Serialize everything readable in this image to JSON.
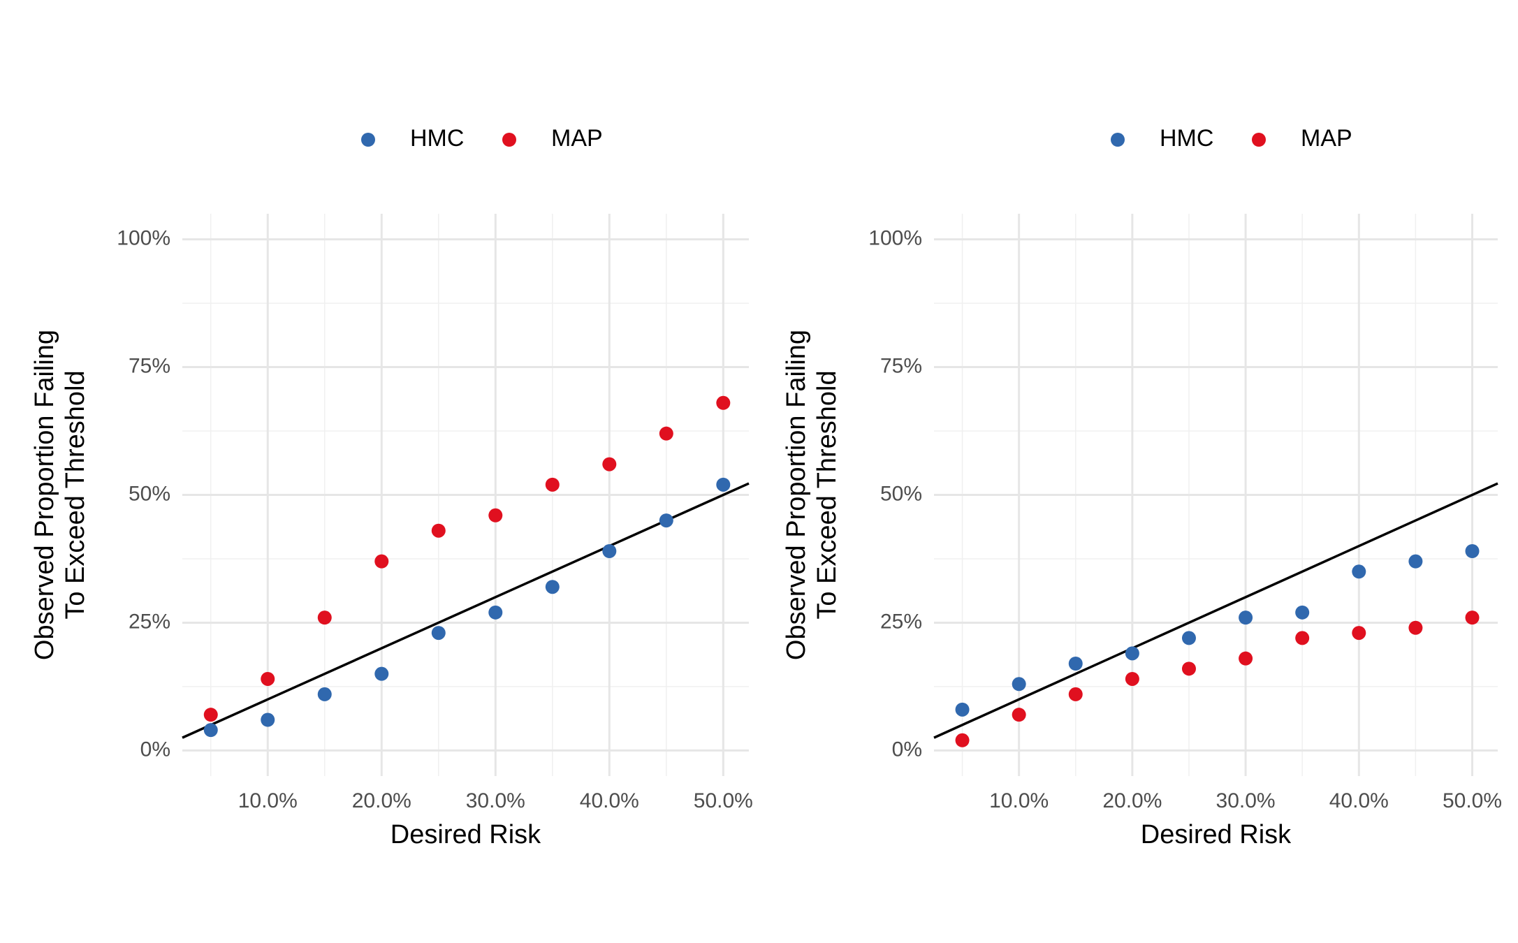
{
  "chart_data": [
    {
      "type": "scatter",
      "xlabel": "Desired Risk",
      "ylabel": [
        "Observed Proportion Failing",
        "To Exceed Threshold"
      ],
      "x": [
        5,
        10,
        15,
        20,
        25,
        30,
        35,
        40,
        45,
        50
      ],
      "series": [
        {
          "name": "HMC",
          "color": "#3068ae",
          "values": [
            4,
            6,
            11,
            15,
            23,
            27,
            32,
            39,
            45,
            52
          ]
        },
        {
          "name": "MAP",
          "color": "#e0101f",
          "values": [
            7,
            14,
            26,
            37,
            43,
            46,
            52,
            56,
            62,
            68
          ]
        }
      ],
      "xlim": [
        2.5,
        52.25
      ],
      "ylim": [
        -5,
        105
      ],
      "xticks": [
        {
          "value": 10,
          "label": "10.0%"
        },
        {
          "value": 20,
          "label": "20.0%"
        },
        {
          "value": 30,
          "label": "30.0%"
        },
        {
          "value": 40,
          "label": "40.0%"
        },
        {
          "value": 50,
          "label": "50.0%"
        }
      ],
      "yticks": [
        {
          "value": 0,
          "label": "0%"
        },
        {
          "value": 25,
          "label": "25%"
        },
        {
          "value": 50,
          "label": "50%"
        },
        {
          "value": 75,
          "label": "75%"
        },
        {
          "value": 100,
          "label": "100%"
        }
      ],
      "x_minor_ticks": [
        5,
        15,
        25,
        35,
        45
      ],
      "y_minor_ticks": [
        12.5,
        37.5,
        62.5,
        87.5
      ],
      "identity_line": true,
      "grid": true,
      "legend": "top"
    },
    {
      "type": "scatter",
      "xlabel": "Desired Risk",
      "ylabel": [
        "Observed Proportion Failing",
        "To Exceed Threshold"
      ],
      "x": [
        5,
        10,
        15,
        20,
        25,
        30,
        35,
        40,
        45,
        50
      ],
      "series": [
        {
          "name": "HMC",
          "color": "#3068ae",
          "values": [
            8,
            13,
            17,
            19,
            22,
            26,
            27,
            35,
            37,
            39
          ]
        },
        {
          "name": "MAP",
          "color": "#e0101f",
          "values": [
            2,
            7,
            11,
            14,
            16,
            18,
            22,
            23,
            24,
            26
          ]
        }
      ],
      "xlim": [
        2.5,
        52.25
      ],
      "ylim": [
        -5,
        105
      ],
      "xticks": [
        {
          "value": 10,
          "label": "10.0%"
        },
        {
          "value": 20,
          "label": "20.0%"
        },
        {
          "value": 30,
          "label": "30.0%"
        },
        {
          "value": 40,
          "label": "40.0%"
        },
        {
          "value": 50,
          "label": "50.0%"
        }
      ],
      "yticks": [
        {
          "value": 0,
          "label": "0%"
        },
        {
          "value": 25,
          "label": "25%"
        },
        {
          "value": 50,
          "label": "50%"
        },
        {
          "value": 75,
          "label": "75%"
        },
        {
          "value": 100,
          "label": "100%"
        }
      ],
      "x_minor_ticks": [
        5,
        15,
        25,
        35,
        45
      ],
      "y_minor_ticks": [
        12.5,
        37.5,
        62.5,
        87.5
      ],
      "identity_line": true,
      "grid": true,
      "legend": "top"
    }
  ]
}
